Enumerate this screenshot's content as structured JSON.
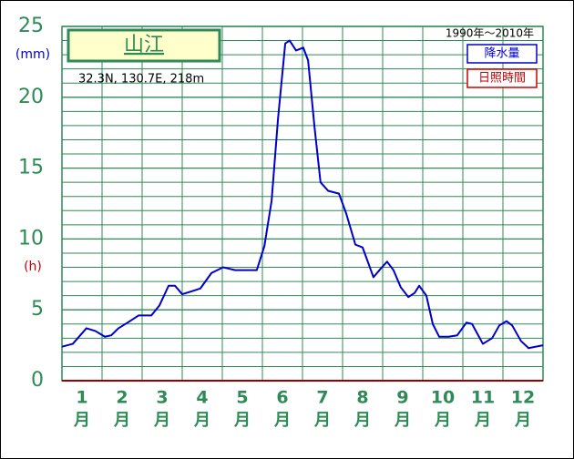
{
  "chart_data": {
    "type": "line",
    "title": "山江",
    "subtitle": "32.3N,  130.7E,  218m",
    "period": "1990年〜2010年",
    "y_unit_label": "(mm)",
    "y2_unit_label": "(h)",
    "legend": [
      {
        "name": "降水量",
        "color": "#0000cc"
      },
      {
        "name": "日照時間",
        "color": "#cc0000"
      }
    ],
    "x_tick_labels": [
      [
        "1",
        "月"
      ],
      [
        "2",
        "月"
      ],
      [
        "3",
        "月"
      ],
      [
        "4",
        "月"
      ],
      [
        "5",
        "月"
      ],
      [
        "6",
        "月"
      ],
      [
        "7",
        "月"
      ],
      [
        "8",
        "月"
      ],
      [
        "9",
        "月"
      ],
      [
        "10",
        "月"
      ],
      [
        "11",
        "月"
      ],
      [
        "12",
        "月"
      ]
    ],
    "xlim": [
      0,
      12
    ],
    "month_boundaries": [
      0,
      1,
      2,
      3,
      4,
      5,
      6,
      7,
      8,
      9,
      10,
      11,
      12
    ],
    "ylim": [
      0,
      25
    ],
    "yticks": [
      0,
      5,
      10,
      15,
      20,
      25
    ],
    "minor_yticks": [
      1,
      2,
      3,
      4,
      6,
      7,
      8,
      9,
      11,
      12,
      13,
      14,
      16,
      17,
      18,
      19,
      21,
      22,
      23,
      24
    ],
    "grid": true,
    "x": [
      0,
      0.27,
      0.61,
      0.84,
      1.07,
      1.23,
      1.41,
      1.64,
      1.91,
      2.23,
      2.43,
      2.66,
      2.82,
      3.0,
      3.23,
      3.45,
      3.73,
      4.02,
      4.32,
      4.55,
      4.86,
      5.05,
      5.23,
      5.39,
      5.57,
      5.68,
      5.84,
      6.02,
      6.14,
      6.3,
      6.45,
      6.64,
      6.91,
      7.09,
      7.32,
      7.5,
      7.77,
      7.95,
      8.11,
      8.27,
      8.45,
      8.64,
      8.8,
      8.91,
      9.09,
      9.25,
      9.41,
      9.64,
      9.86,
      10.09,
      10.23,
      10.5,
      10.73,
      10.91,
      11.09,
      11.23,
      11.45,
      11.64,
      12
    ],
    "series": [
      {
        "color": "#0000cc",
        "values": [
          2.4,
          2.6,
          3.7,
          3.5,
          3.1,
          3.2,
          3.7,
          4.1,
          4.6,
          4.6,
          5.3,
          6.7,
          6.7,
          6.1,
          6.3,
          6.5,
          7.6,
          8.0,
          7.8,
          7.8,
          7.8,
          9.5,
          12.7,
          18.5,
          23.8,
          24.0,
          23.3,
          23.5,
          22.6,
          17.9,
          14.0,
          13.4,
          13.2,
          11.8,
          9.6,
          9.4,
          7.3,
          7.9,
          8.4,
          7.8,
          6.6,
          5.9,
          6.2,
          6.7,
          6.0,
          4.0,
          3.1,
          3.1,
          3.2,
          4.1,
          4.0,
          2.6,
          3.0,
          3.9,
          4.2,
          3.9,
          2.8,
          2.3,
          2.5
        ]
      }
    ]
  }
}
